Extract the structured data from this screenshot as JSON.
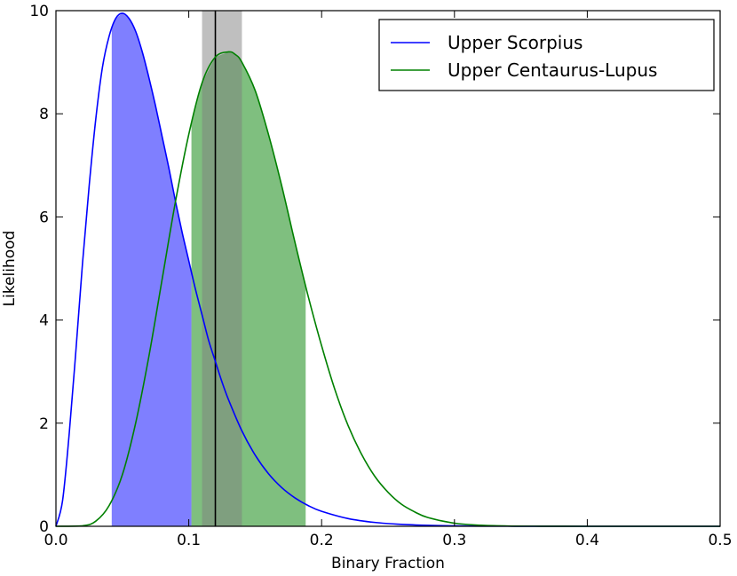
{
  "chart_data": {
    "type": "line",
    "xlabel": "Binary Fraction",
    "ylabel": "Likelihood",
    "xlim": [
      0.0,
      0.5
    ],
    "ylim": [
      0,
      10
    ],
    "xticks": [
      0.0,
      0.1,
      0.2,
      0.3,
      0.4,
      0.5
    ],
    "xtick_labels": [
      "0.0",
      "0.1",
      "0.2",
      "0.3",
      "0.4",
      "0.5"
    ],
    "yticks": [
      0,
      2,
      4,
      6,
      8,
      10
    ],
    "ytick_labels": [
      "0",
      "2",
      "4",
      "6",
      "8",
      "10"
    ],
    "legend_position": "top-right",
    "series": [
      {
        "name": "Upper Scorpius",
        "color": "#0000ff",
        "fill_color": "#0000ff",
        "fill_range": [
          0.042,
          0.102
        ],
        "x": [
          0.0,
          0.005,
          0.01,
          0.015,
          0.02,
          0.025,
          0.03,
          0.035,
          0.04,
          0.045,
          0.05,
          0.055,
          0.06,
          0.065,
          0.07,
          0.075,
          0.08,
          0.085,
          0.09,
          0.095,
          0.1,
          0.105,
          0.11,
          0.115,
          0.12,
          0.125,
          0.13,
          0.14,
          0.15,
          0.16,
          0.17,
          0.18,
          0.19,
          0.2,
          0.22,
          0.24,
          0.26,
          0.28,
          0.3,
          0.32,
          0.34,
          0.36,
          0.4,
          0.5
        ],
        "y": [
          0.0,
          0.5,
          1.8,
          3.4,
          5.1,
          6.6,
          7.9,
          8.9,
          9.5,
          9.85,
          9.95,
          9.85,
          9.6,
          9.2,
          8.7,
          8.15,
          7.55,
          6.95,
          6.3,
          5.7,
          5.15,
          4.6,
          4.1,
          3.6,
          3.2,
          2.8,
          2.45,
          1.85,
          1.38,
          1.02,
          0.75,
          0.55,
          0.4,
          0.29,
          0.15,
          0.075,
          0.037,
          0.018,
          0.009,
          0.004,
          0.002,
          0.001,
          0.0,
          0.0
        ]
      },
      {
        "name": "Upper Centaurus-Lupus",
        "color": "#008000",
        "fill_color": "#008000",
        "fill_range": [
          0.102,
          0.188
        ],
        "x": [
          0.0,
          0.02,
          0.03,
          0.04,
          0.05,
          0.06,
          0.07,
          0.08,
          0.09,
          0.1,
          0.11,
          0.12,
          0.13,
          0.135,
          0.14,
          0.15,
          0.16,
          0.17,
          0.18,
          0.19,
          0.2,
          0.21,
          0.22,
          0.23,
          0.24,
          0.25,
          0.26,
          0.27,
          0.28,
          0.3,
          0.32,
          0.34,
          0.36,
          0.4,
          0.5
        ],
        "y": [
          0.0,
          0.01,
          0.1,
          0.4,
          1.0,
          2.0,
          3.3,
          4.8,
          6.3,
          7.6,
          8.6,
          9.1,
          9.2,
          9.15,
          9.0,
          8.45,
          7.6,
          6.6,
          5.5,
          4.45,
          3.5,
          2.65,
          1.95,
          1.4,
          0.97,
          0.66,
          0.43,
          0.28,
          0.17,
          0.06,
          0.02,
          0.006,
          0.002,
          0.0,
          0.0
        ]
      }
    ],
    "reference": {
      "value": 0.12,
      "band": [
        0.11,
        0.14
      ],
      "line_color": "#000000",
      "band_color": "#808080"
    }
  }
}
